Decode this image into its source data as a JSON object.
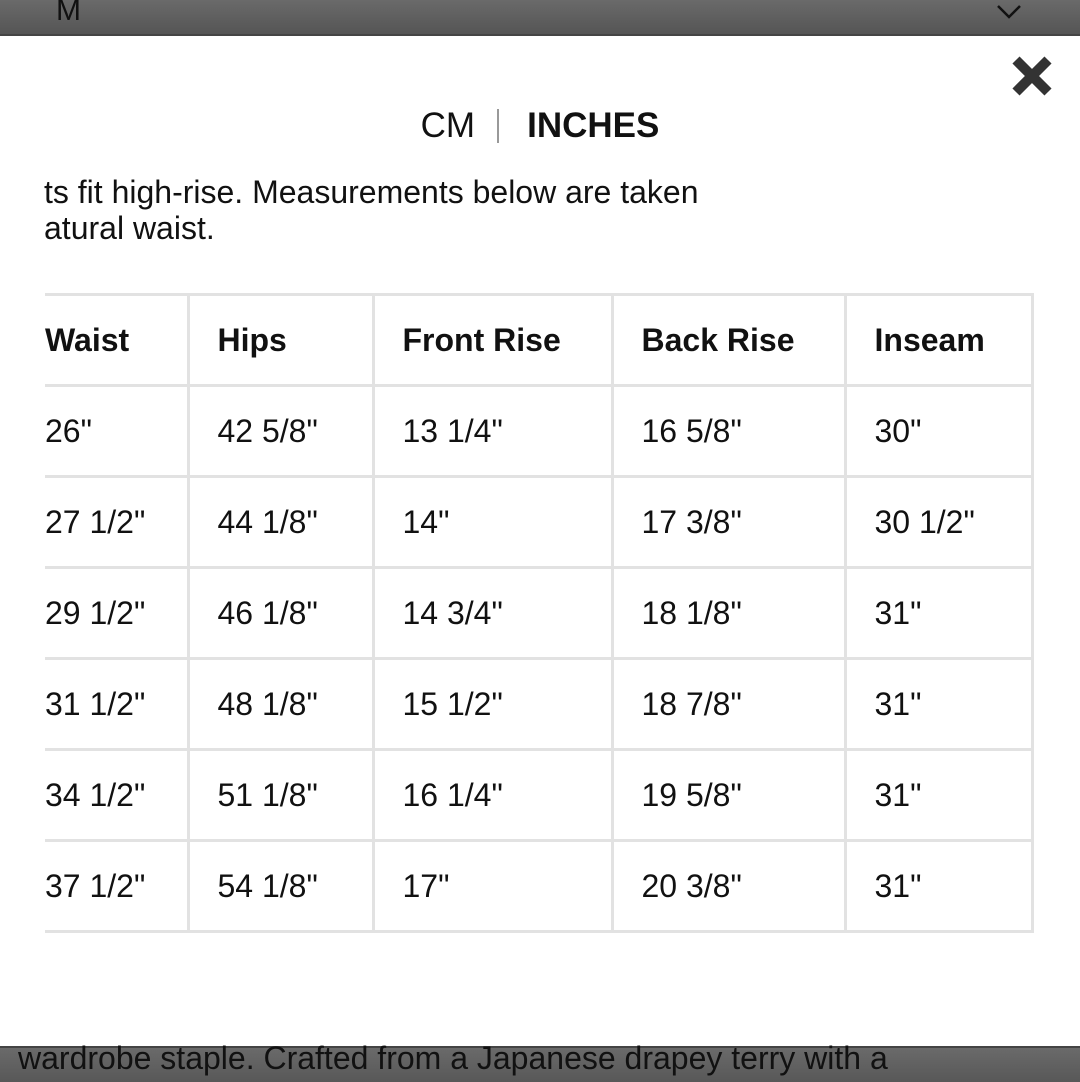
{
  "size_select": {
    "value": "M",
    "icon": "chevron-down-icon"
  },
  "close_icon": "close-icon",
  "unit_toggle": {
    "cm_label": "CM",
    "inches_label": "INCHES",
    "selected": "INCHES"
  },
  "description": {
    "line1": "ts fit high-rise. Measurements below are taken",
    "line2": "atural waist."
  },
  "table": {
    "headers": [
      "Waist",
      "Hips",
      "Front Rise",
      "Back Rise",
      "Inseam"
    ],
    "rows": [
      [
        "26\"",
        "42 5/8\"",
        "13 1/4\"",
        "16 5/8\"",
        "30\""
      ],
      [
        "27 1/2\"",
        "44 1/8\"",
        "14\"",
        "17 3/8\"",
        "30 1/2\""
      ],
      [
        "29 1/2\"",
        "46 1/8\"",
        "14 3/4\"",
        "18 1/8\"",
        "31\""
      ],
      [
        "31 1/2\"",
        "48 1/8\"",
        "15 1/2\"",
        "18 7/8\"",
        "31\""
      ],
      [
        "34 1/2\"",
        "51 1/8\"",
        "16 1/4\"",
        "19 5/8\"",
        "31\""
      ],
      [
        "37 1/2\"",
        "54 1/8\"",
        "17\"",
        "20 3/8\"",
        "31\""
      ]
    ]
  },
  "background_text": "wardrobe staple. Crafted from a Japanese drapey terry with a"
}
